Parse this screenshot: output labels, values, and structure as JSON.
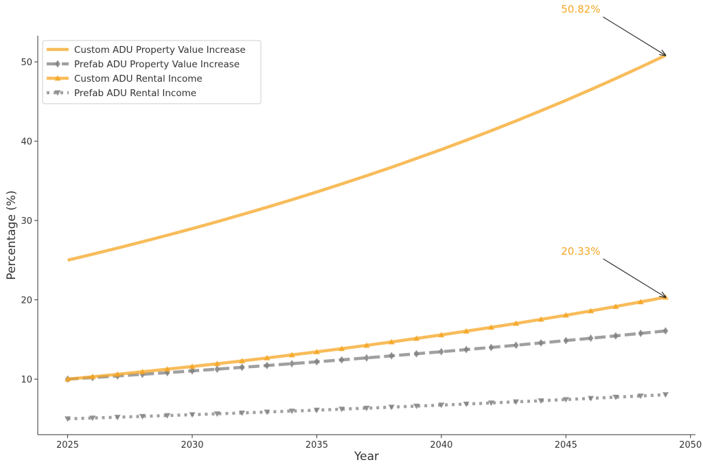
{
  "chart_data": {
    "type": "line",
    "xlabel": "Year",
    "ylabel": "Percentage (%)",
    "xlim": [
      2023.8,
      2050.2
    ],
    "ylim": [
      3.0,
      53.3
    ],
    "xticks": [
      2025,
      2030,
      2035,
      2040,
      2045,
      2050
    ],
    "yticks": [
      10,
      20,
      30,
      40,
      50
    ],
    "grid": false,
    "legend_position": "top-left",
    "x": [
      2025,
      2026,
      2027,
      2028,
      2029,
      2030,
      2031,
      2032,
      2033,
      2034,
      2035,
      2036,
      2037,
      2038,
      2039,
      2040,
      2041,
      2042,
      2043,
      2044,
      2045,
      2046,
      2047,
      2048,
      2049
    ],
    "series": [
      {
        "name": "Custom ADU Property Value Increase",
        "color": "#f5a623",
        "style": "solid",
        "marker": "none",
        "values": [
          25.0,
          25.75,
          26.52,
          27.32,
          28.14,
          28.98,
          29.85,
          30.75,
          31.67,
          32.62,
          33.6,
          34.61,
          35.65,
          36.71,
          37.82,
          38.95,
          40.12,
          41.32,
          42.56,
          43.84,
          45.15,
          46.51,
          47.9,
          49.34,
          50.82
        ]
      },
      {
        "name": "Prefab ADU Property Value Increase",
        "color": "#808080",
        "style": "dashed",
        "marker": "diamond",
        "values": [
          10.0,
          10.2,
          10.4,
          10.61,
          10.82,
          11.04,
          11.26,
          11.49,
          11.72,
          11.95,
          12.19,
          12.43,
          12.68,
          12.94,
          13.2,
          13.46,
          13.73,
          14.0,
          14.28,
          14.57,
          14.86,
          15.16,
          15.46,
          15.77,
          16.08
        ]
      },
      {
        "name": "Custom ADU Rental Income",
        "color": "#f5a623",
        "style": "solid",
        "marker": "triangle-up",
        "values": [
          10.0,
          10.3,
          10.61,
          10.93,
          11.26,
          11.59,
          11.94,
          12.3,
          12.67,
          13.05,
          13.44,
          13.84,
          14.26,
          14.69,
          15.13,
          15.58,
          16.05,
          16.53,
          17.02,
          17.54,
          18.06,
          18.6,
          19.16,
          19.74,
          20.33
        ]
      },
      {
        "name": "Prefab ADU Rental Income",
        "color": "#808080",
        "style": "dotted",
        "marker": "triangle-down",
        "values": [
          5.0,
          5.1,
          5.2,
          5.31,
          5.41,
          5.52,
          5.63,
          5.74,
          5.86,
          5.98,
          6.09,
          6.22,
          6.34,
          6.47,
          6.6,
          6.73,
          6.86,
          7.0,
          7.14,
          7.28,
          7.43,
          7.58,
          7.73,
          7.88,
          8.04
        ]
      }
    ],
    "annotations": [
      {
        "text": "50.82%",
        "x": 2049,
        "y": 50.82,
        "color": "#f5a623"
      },
      {
        "text": "20.33%",
        "x": 2049,
        "y": 20.33,
        "color": "#f5a623"
      }
    ]
  }
}
